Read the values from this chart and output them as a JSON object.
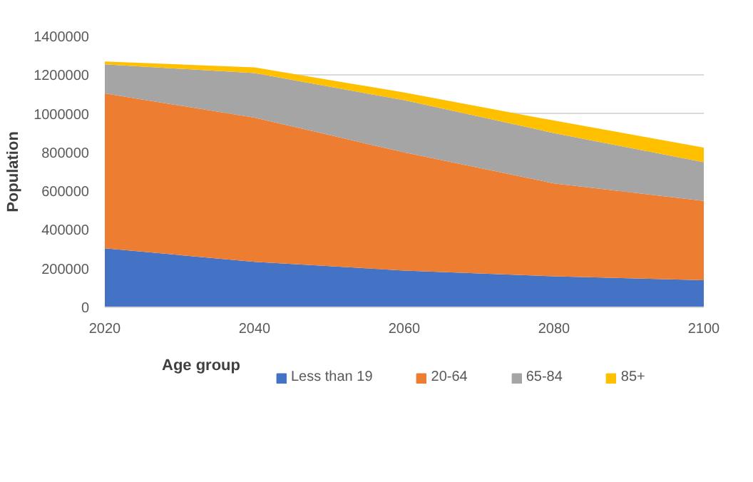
{
  "chart_data": {
    "type": "area",
    "stacked": true,
    "x": [
      2020,
      2040,
      2060,
      2080,
      2100
    ],
    "ylabel": "Population",
    "legend_title": "Age group",
    "legend": "bottom",
    "grid": "y",
    "xlim": [
      2020,
      2100
    ],
    "xticks": [
      2020,
      2040,
      2060,
      2080,
      2100
    ],
    "ylim": [
      0,
      1400000
    ],
    "yticks": [
      0,
      200000,
      400000,
      600000,
      800000,
      1000000,
      1200000,
      1400000
    ],
    "series": [
      {
        "name": "Less than 19",
        "color": "#4472c4",
        "values": [
          305000,
          235000,
          190000,
          160000,
          140000
        ]
      },
      {
        "name": "20-64",
        "color": "#ed7d31",
        "values": [
          800000,
          745000,
          610000,
          480000,
          410000
        ]
      },
      {
        "name": "65-84",
        "color": "#a5a5a5",
        "values": [
          150000,
          230000,
          270000,
          260000,
          200000
        ]
      },
      {
        "name": "85+",
        "color": "#ffc000",
        "values": [
          15000,
          30000,
          40000,
          65000,
          75000
        ]
      }
    ]
  }
}
